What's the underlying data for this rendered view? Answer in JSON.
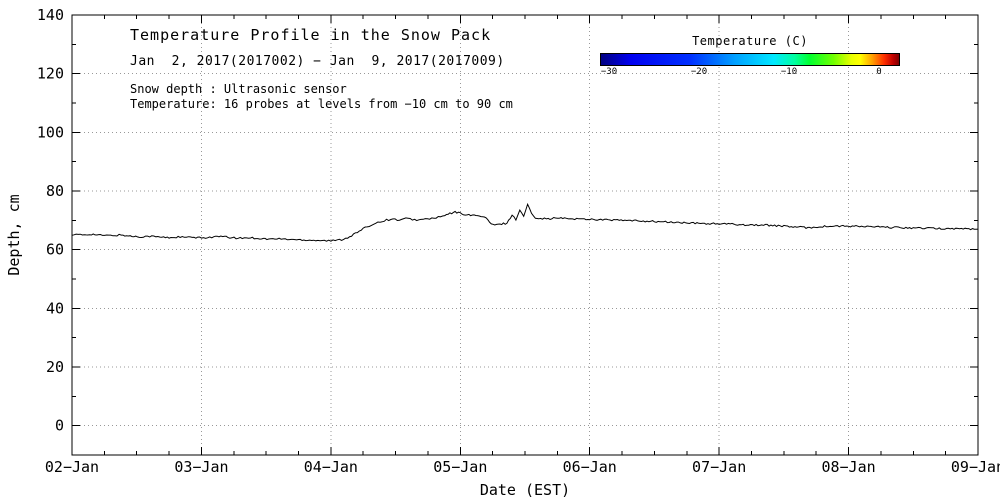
{
  "figure": {
    "title": "Temperature Profile in the Snow Pack",
    "subtitle": "Jan  2, 2017(2017002) − Jan  9, 2017(2017009)",
    "note1": "Snow depth : Ultrasonic sensor",
    "note2": "Temperature: 16 probes at levels from −10 cm to 90 cm"
  },
  "colorbar": {
    "title": "Temperature (C)",
    "ticks": [
      {
        "label": "−30",
        "pos": 0.03
      },
      {
        "label": "−20",
        "pos": 0.33
      },
      {
        "label": "−10",
        "pos": 0.63
      },
      {
        "label": "0",
        "pos": 0.93
      }
    ],
    "gradient": [
      "#000080 0%",
      "#0000f0 10%",
      "#0030ff 30%",
      "#00a0ff 45%",
      "#00e8ff 58%",
      "#00ffa0 65%",
      "#00ff30 70%",
      "#70ff00 78%",
      "#e8ff00 84%",
      "#ffff00 87%",
      "#ffa000 91%",
      "#ff3000 95%",
      "#c00000 98%",
      "#800000 100%"
    ]
  },
  "chart_data": {
    "type": "line",
    "title": "Temperature Profile in the Snow Pack",
    "xlabel": "Date (EST)",
    "ylabel": "Depth, cm",
    "xlim": [
      0,
      7
    ],
    "ylim": [
      -10,
      140
    ],
    "grid": "dotted",
    "grid_color": "#999999",
    "line_color": "#000000",
    "x_minor_step": 0.25,
    "y_minor_step": 10,
    "x_ticks": [
      {
        "pos": 0,
        "label": "02−Jan"
      },
      {
        "pos": 1,
        "label": "03−Jan"
      },
      {
        "pos": 2,
        "label": "04−Jan"
      },
      {
        "pos": 3,
        "label": "05−Jan"
      },
      {
        "pos": 4,
        "label": "06−Jan"
      },
      {
        "pos": 5,
        "label": "07−Jan"
      },
      {
        "pos": 6,
        "label": "08−Jan"
      },
      {
        "pos": 7,
        "label": "09−Jan"
      }
    ],
    "y_ticks": [
      {
        "pos": 0,
        "label": "0"
      },
      {
        "pos": 20,
        "label": "20"
      },
      {
        "pos": 40,
        "label": "40"
      },
      {
        "pos": 60,
        "label": "60"
      },
      {
        "pos": 80,
        "label": "80"
      },
      {
        "pos": 100,
        "label": "100"
      },
      {
        "pos": 120,
        "label": "120"
      },
      {
        "pos": 140,
        "label": "140"
      }
    ],
    "series": [
      {
        "name": "snow-depth-ultrasonic",
        "points": [
          [
            0.0,
            65.2
          ],
          [
            0.08,
            65.0
          ],
          [
            0.15,
            65.3
          ],
          [
            0.22,
            64.9
          ],
          [
            0.3,
            64.8
          ],
          [
            0.38,
            65.0
          ],
          [
            0.45,
            64.6
          ],
          [
            0.52,
            64.4
          ],
          [
            0.6,
            64.6
          ],
          [
            0.68,
            64.3
          ],
          [
            0.75,
            64.1
          ],
          [
            0.82,
            64.3
          ],
          [
            0.9,
            64.2
          ],
          [
            1.0,
            64.0
          ],
          [
            1.08,
            64.3
          ],
          [
            1.15,
            64.5
          ],
          [
            1.22,
            64.1
          ],
          [
            1.3,
            63.9
          ],
          [
            1.38,
            64.1
          ],
          [
            1.45,
            63.8
          ],
          [
            1.52,
            63.6
          ],
          [
            1.6,
            63.7
          ],
          [
            1.68,
            63.5
          ],
          [
            1.75,
            63.4
          ],
          [
            1.82,
            63.3
          ],
          [
            1.9,
            63.2
          ],
          [
            1.95,
            63.1
          ],
          [
            2.0,
            63.0
          ],
          [
            2.05,
            63.2
          ],
          [
            2.1,
            63.6
          ],
          [
            2.16,
            64.8
          ],
          [
            2.22,
            66.3
          ],
          [
            2.28,
            67.8
          ],
          [
            2.33,
            68.8
          ],
          [
            2.38,
            69.6
          ],
          [
            2.43,
            70.1
          ],
          [
            2.48,
            70.4
          ],
          [
            2.53,
            70.1
          ],
          [
            2.58,
            70.6
          ],
          [
            2.63,
            70.3
          ],
          [
            2.68,
            70.1
          ],
          [
            2.73,
            70.4
          ],
          [
            2.78,
            70.7
          ],
          [
            2.83,
            71.0
          ],
          [
            2.88,
            71.6
          ],
          [
            2.92,
            72.3
          ],
          [
            2.96,
            72.8
          ],
          [
            3.0,
            72.4
          ],
          [
            3.04,
            72.0
          ],
          [
            3.08,
            71.6
          ],
          [
            3.12,
            71.9
          ],
          [
            3.16,
            71.2
          ],
          [
            3.2,
            70.9
          ],
          [
            3.24,
            68.6
          ],
          [
            3.28,
            68.4
          ],
          [
            3.32,
            68.8
          ],
          [
            3.36,
            69.0
          ],
          [
            3.4,
            71.8
          ],
          [
            3.43,
            70.3
          ],
          [
            3.46,
            73.6
          ],
          [
            3.49,
            71.2
          ],
          [
            3.52,
            75.6
          ],
          [
            3.55,
            72.2
          ],
          [
            3.58,
            71.0
          ],
          [
            3.62,
            70.7
          ],
          [
            3.68,
            70.5
          ],
          [
            3.75,
            70.8
          ],
          [
            3.82,
            70.6
          ],
          [
            3.9,
            70.5
          ],
          [
            4.0,
            70.4
          ],
          [
            4.1,
            70.2
          ],
          [
            4.2,
            70.1
          ],
          [
            4.3,
            69.9
          ],
          [
            4.4,
            69.8
          ],
          [
            4.5,
            69.6
          ],
          [
            4.6,
            69.4
          ],
          [
            4.7,
            69.2
          ],
          [
            4.8,
            69.0
          ],
          [
            4.9,
            68.9
          ],
          [
            5.0,
            68.8
          ],
          [
            5.1,
            68.7
          ],
          [
            5.2,
            68.5
          ],
          [
            5.3,
            68.4
          ],
          [
            5.4,
            68.3
          ],
          [
            5.5,
            68.0
          ],
          [
            5.6,
            67.7
          ],
          [
            5.7,
            67.5
          ],
          [
            5.8,
            67.9
          ],
          [
            5.9,
            68.0
          ],
          [
            6.0,
            68.0
          ],
          [
            6.1,
            67.9
          ],
          [
            6.2,
            67.8
          ],
          [
            6.3,
            67.6
          ],
          [
            6.4,
            67.5
          ],
          [
            6.5,
            67.4
          ],
          [
            6.6,
            67.3
          ],
          [
            6.7,
            67.2
          ],
          [
            6.8,
            67.2
          ],
          [
            6.9,
            67.1
          ],
          [
            7.0,
            67.0
          ]
        ]
      }
    ]
  }
}
